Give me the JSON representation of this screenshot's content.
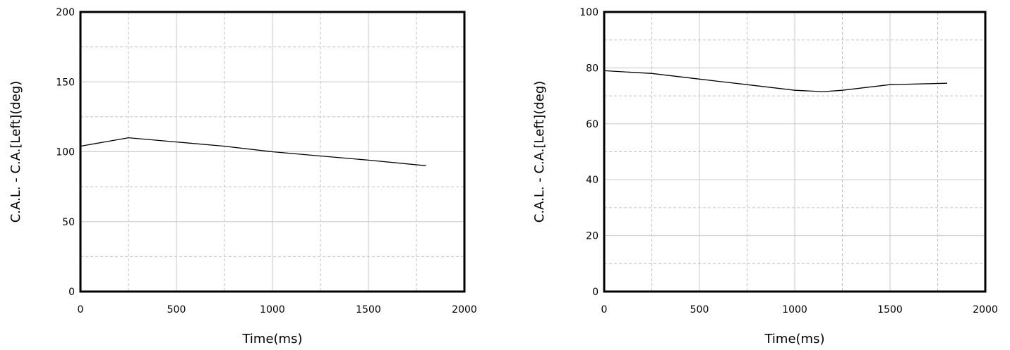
{
  "chart_data": [
    {
      "type": "line",
      "title": "",
      "xlabel": "Time(ms)",
      "ylabel": "C.A.L. - C.A.[Left](deg)",
      "xlim": [
        0,
        2000
      ],
      "ylim": [
        0,
        200
      ],
      "xticks": [
        "0",
        "500",
        "1000",
        "1500",
        "2000"
      ],
      "yticks": [
        "0",
        "50",
        "100",
        "150",
        "200"
      ],
      "grid": true,
      "line_color": "#000000",
      "series": [
        {
          "x": [
            0,
            250,
            500,
            750,
            1000,
            1250,
            1500,
            1800
          ],
          "y": [
            104,
            110,
            107,
            104,
            100,
            97,
            94,
            90
          ]
        }
      ]
    },
    {
      "type": "line",
      "title": "",
      "xlabel": "Time(ms)",
      "ylabel": "C.A.L. - C.A.[Left](deg)",
      "xlim": [
        0,
        2000
      ],
      "ylim": [
        0,
        100
      ],
      "xticks": [
        "0",
        "500",
        "1000",
        "1500",
        "2000"
      ],
      "yticks": [
        "0",
        "20",
        "40",
        "60",
        "80",
        "100"
      ],
      "grid": true,
      "line_color": "#000000",
      "series": [
        {
          "x": [
            0,
            250,
            500,
            750,
            1000,
            1150,
            1250,
            1500,
            1800
          ],
          "y": [
            79,
            78,
            76,
            74,
            72,
            71.5,
            72,
            74,
            74.5
          ]
        }
      ]
    }
  ]
}
